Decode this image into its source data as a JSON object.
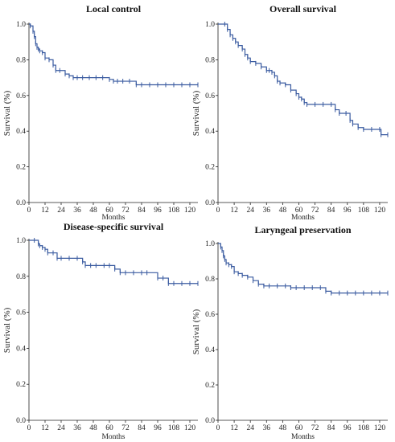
{
  "style": {
    "curve_color": "#3a5ba0",
    "axis_color": "#222222"
  },
  "chart_data": [
    {
      "type": "line",
      "title": "Local control",
      "xlabel": "Months",
      "ylabel": "Survival (%)",
      "xlim": [
        0,
        126
      ],
      "ylim": [
        0,
        1
      ],
      "xticks": [
        "0",
        "12",
        "24",
        "36",
        "48",
        "60",
        "72",
        "84",
        "96",
        "108",
        "120"
      ],
      "yticks": [
        "0.0",
        "0.2",
        "0.4",
        "0.6",
        "0.8",
        "1.0"
      ],
      "series": [
        {
          "x": [
            0,
            1,
            3,
            4,
            5,
            6,
            7,
            8,
            10,
            12,
            15,
            18,
            20,
            23,
            27,
            30,
            33,
            36,
            40,
            45,
            50,
            55,
            60,
            63,
            66,
            70,
            75,
            80,
            84,
            90,
            96,
            102,
            108,
            114,
            120,
            126
          ],
          "y": [
            1.0,
            0.99,
            0.96,
            0.93,
            0.89,
            0.87,
            0.86,
            0.85,
            0.84,
            0.81,
            0.8,
            0.77,
            0.74,
            0.74,
            0.72,
            0.71,
            0.7,
            0.7,
            0.7,
            0.7,
            0.7,
            0.7,
            0.69,
            0.68,
            0.68,
            0.68,
            0.68,
            0.66,
            0.66,
            0.66,
            0.66,
            0.66,
            0.66,
            0.66,
            0.66,
            0.66
          ]
        }
      ]
    },
    {
      "type": "line",
      "title": "Overall survival",
      "xlabel": "Months",
      "ylabel": "Survival (%)",
      "xlim": [
        0,
        126
      ],
      "ylim": [
        0,
        1
      ],
      "xticks": [
        "0",
        "12",
        "24",
        "36",
        "48",
        "60",
        "72",
        "84",
        "96",
        "108",
        "120"
      ],
      "yticks": [
        "0.0",
        "0.2",
        "0.4",
        "0.6",
        "0.8",
        "1.0"
      ],
      "series": [
        {
          "x": [
            0,
            5,
            7,
            9,
            11,
            13,
            15,
            18,
            20,
            22,
            24,
            28,
            32,
            36,
            38,
            40,
            42,
            44,
            46,
            50,
            54,
            58,
            60,
            62,
            64,
            66,
            72,
            78,
            84,
            87,
            90,
            95,
            98,
            100,
            104,
            108,
            114,
            120,
            121,
            126
          ],
          "y": [
            1.0,
            1.0,
            0.97,
            0.94,
            0.92,
            0.9,
            0.88,
            0.86,
            0.83,
            0.81,
            0.79,
            0.78,
            0.76,
            0.74,
            0.74,
            0.73,
            0.71,
            0.68,
            0.67,
            0.66,
            0.63,
            0.61,
            0.59,
            0.58,
            0.56,
            0.55,
            0.55,
            0.55,
            0.55,
            0.52,
            0.5,
            0.5,
            0.46,
            0.44,
            0.42,
            0.41,
            0.41,
            0.41,
            0.38,
            0.38
          ]
        }
      ]
    },
    {
      "type": "line",
      "title": "Disease-specific survival",
      "xlabel": "Months",
      "ylabel": "Survival (%)",
      "xlim": [
        0,
        126
      ],
      "ylim": [
        0,
        1
      ],
      "xticks": [
        "0",
        "12",
        "24",
        "36",
        "48",
        "60",
        "72",
        "84",
        "96",
        "108",
        "120"
      ],
      "yticks": [
        "0.0",
        "0.2",
        "0.4",
        "0.6",
        "0.8",
        "1.0"
      ],
      "series": [
        {
          "x": [
            0,
            4,
            7,
            8,
            10,
            12,
            14,
            18,
            21,
            24,
            30,
            36,
            40,
            42,
            46,
            50,
            56,
            60,
            64,
            68,
            72,
            78,
            84,
            88,
            96,
            100,
            104,
            108,
            114,
            120,
            126
          ],
          "y": [
            1.0,
            1.0,
            0.98,
            0.97,
            0.96,
            0.95,
            0.93,
            0.93,
            0.9,
            0.9,
            0.9,
            0.9,
            0.88,
            0.86,
            0.86,
            0.86,
            0.86,
            0.86,
            0.84,
            0.82,
            0.82,
            0.82,
            0.82,
            0.82,
            0.79,
            0.79,
            0.76,
            0.76,
            0.76,
            0.76,
            0.76
          ]
        }
      ]
    },
    {
      "type": "line",
      "title": "Laryngeal preservation",
      "xlabel": "Months",
      "ylabel": "Survival (%)",
      "xlim": [
        0,
        126
      ],
      "ylim": [
        0,
        1
      ],
      "xticks": [
        "0",
        "12",
        "24",
        "36",
        "48",
        "60",
        "72",
        "84",
        "96",
        "108",
        "120"
      ],
      "yticks": [
        "0.0",
        "0.2",
        "0.4",
        "0.6",
        "0.8",
        "1.0"
      ],
      "series": [
        {
          "x": [
            0,
            2,
            3,
            4,
            5,
            6,
            8,
            10,
            12,
            15,
            18,
            22,
            26,
            30,
            34,
            38,
            44,
            50,
            54,
            58,
            64,
            70,
            76,
            80,
            84,
            90,
            96,
            102,
            108,
            114,
            120,
            126
          ],
          "y": [
            1.0,
            0.98,
            0.96,
            0.93,
            0.91,
            0.89,
            0.88,
            0.87,
            0.84,
            0.83,
            0.82,
            0.81,
            0.79,
            0.77,
            0.76,
            0.76,
            0.76,
            0.76,
            0.75,
            0.75,
            0.75,
            0.75,
            0.75,
            0.73,
            0.72,
            0.72,
            0.72,
            0.72,
            0.72,
            0.72,
            0.72,
            0.72
          ]
        }
      ]
    }
  ]
}
